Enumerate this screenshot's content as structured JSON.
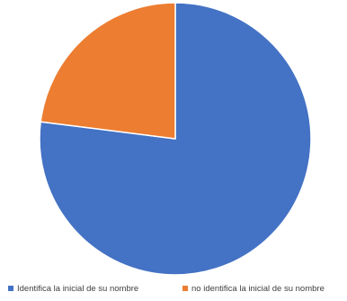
{
  "chart_data": {
    "type": "pie",
    "title": "",
    "labels": [
      "Identifica la inicial de su nombre",
      "no identifica la inicial de su nombre"
    ],
    "values": [
      77,
      23
    ],
    "colors": [
      "#4472C4",
      "#ED7D31"
    ],
    "start_angle_deg": 0,
    "direction": "clockwise",
    "legend_position": "bottom"
  }
}
